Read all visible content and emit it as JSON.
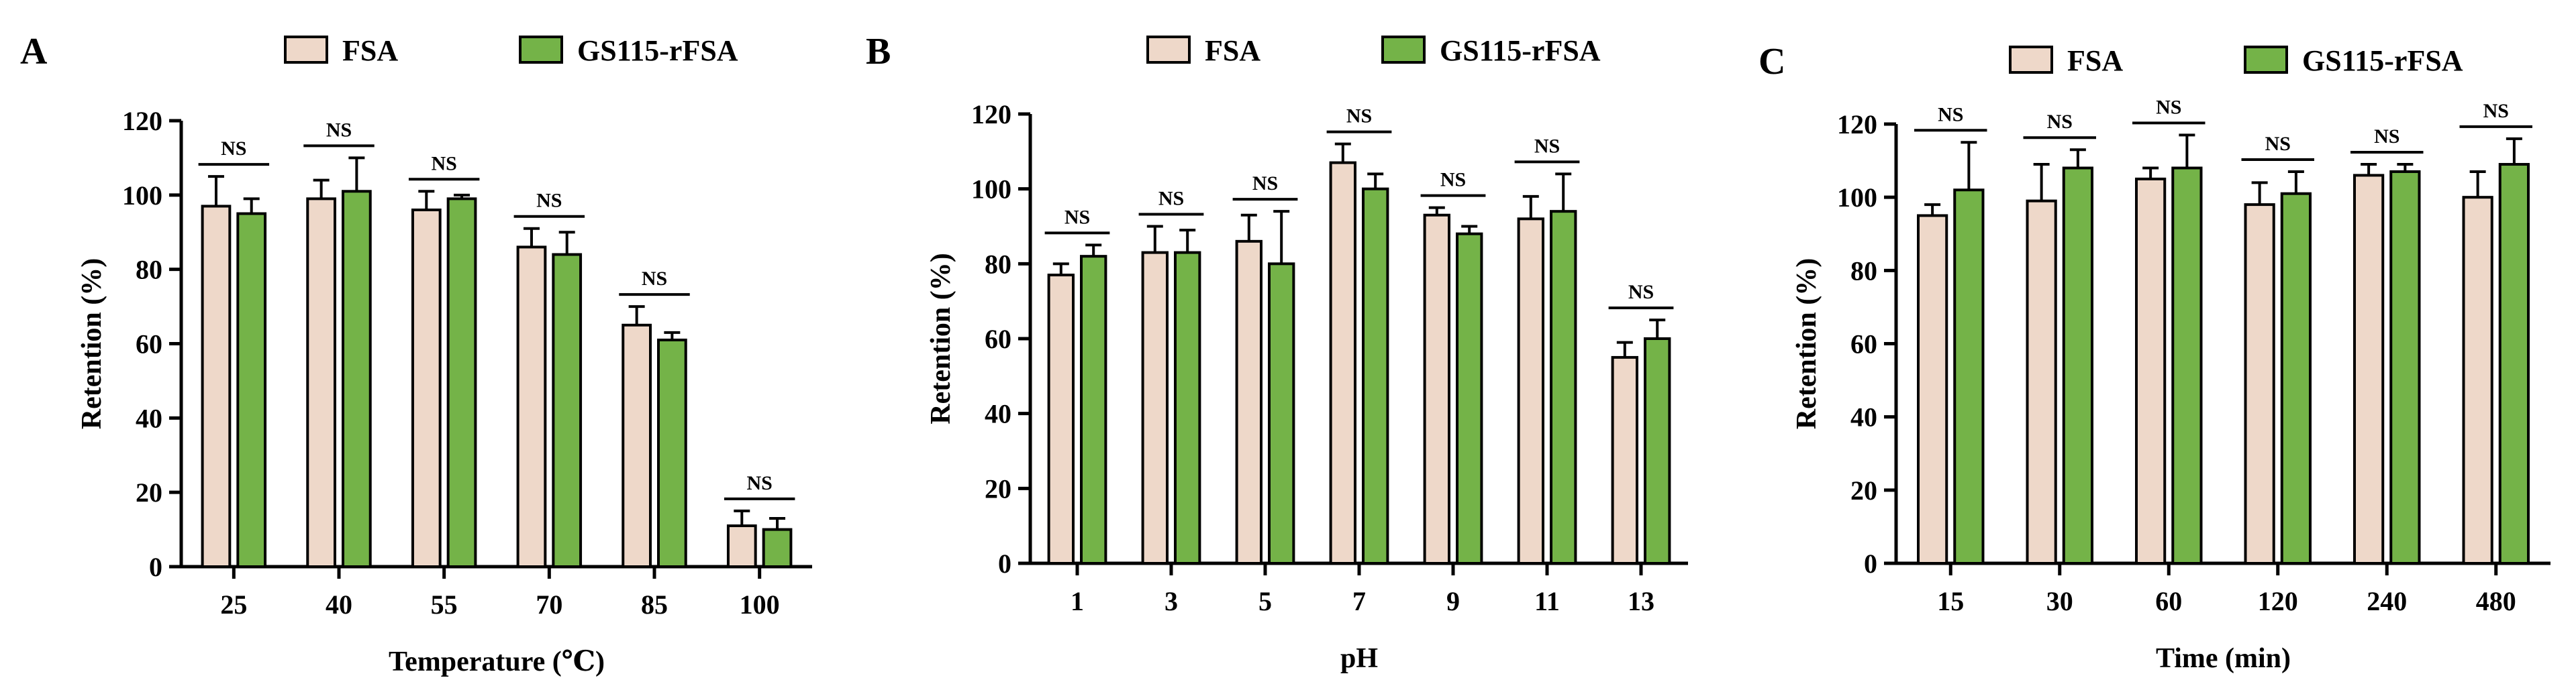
{
  "legend": [
    "FSA",
    "GS115-rFSA"
  ],
  "colors": {
    "FSA": "#eed8c9",
    "GS115-rFSA": "#74b348",
    "stroke": "#000000"
  },
  "significance_label": "NS",
  "chart_data": [
    {
      "panel": "A",
      "type": "bar",
      "xlabel": "Temperature (℃)",
      "ylabel": "Retention (%)",
      "ylim": [
        0,
        120
      ],
      "yticks": [
        0,
        20,
        40,
        60,
        80,
        100,
        120
      ],
      "categories": [
        "25",
        "40",
        "55",
        "70",
        "85",
        "100"
      ],
      "series": [
        {
          "name": "FSA",
          "values": [
            97,
            99,
            96,
            86,
            65,
            11
          ],
          "errors": [
            8,
            5,
            5,
            5,
            5,
            4
          ]
        },
        {
          "name": "GS115-rFSA",
          "values": [
            95,
            101,
            99,
            84,
            61,
            10
          ],
          "errors": [
            4,
            9,
            1,
            6,
            2,
            3
          ]
        }
      ],
      "annotations": [
        "NS",
        "NS",
        "NS",
        "NS",
        "NS",
        "NS"
      ]
    },
    {
      "panel": "B",
      "type": "bar",
      "xlabel": "pH",
      "ylabel": "Retention (%)",
      "ylim": [
        0,
        120
      ],
      "yticks": [
        0,
        20,
        40,
        60,
        80,
        100,
        120
      ],
      "categories": [
        "1",
        "3",
        "5",
        "7",
        "9",
        "11",
        "13"
      ],
      "series": [
        {
          "name": "FSA",
          "values": [
            77,
            83,
            86,
            107,
            93,
            92,
            55
          ],
          "errors": [
            3,
            7,
            7,
            5,
            2,
            6,
            4
          ]
        },
        {
          "name": "GS115-rFSA",
          "values": [
            82,
            83,
            80,
            100,
            88,
            94,
            60
          ],
          "errors": [
            3,
            6,
            14,
            4,
            2,
            10,
            5
          ]
        }
      ],
      "annotations": [
        "NS",
        "NS",
        "NS",
        "NS",
        "NS",
        "NS",
        "NS"
      ]
    },
    {
      "panel": "C",
      "type": "bar",
      "xlabel": "Time (min)",
      "ylabel": "Retention (%)",
      "ylim": [
        0,
        120
      ],
      "yticks": [
        0,
        20,
        40,
        60,
        80,
        100,
        120
      ],
      "categories": [
        "15",
        "30",
        "60",
        "120",
        "240",
        "480"
      ],
      "series": [
        {
          "name": "FSA",
          "values": [
            95,
            99,
            105,
            98,
            106,
            100
          ],
          "errors": [
            3,
            10,
            3,
            6,
            3,
            7
          ]
        },
        {
          "name": "GS115-rFSA",
          "values": [
            102,
            108,
            108,
            101,
            107,
            109
          ],
          "errors": [
            13,
            5,
            9,
            6,
            2,
            7
          ]
        }
      ],
      "annotations": [
        "NS",
        "NS",
        "NS",
        "NS",
        "NS",
        "NS"
      ]
    }
  ]
}
